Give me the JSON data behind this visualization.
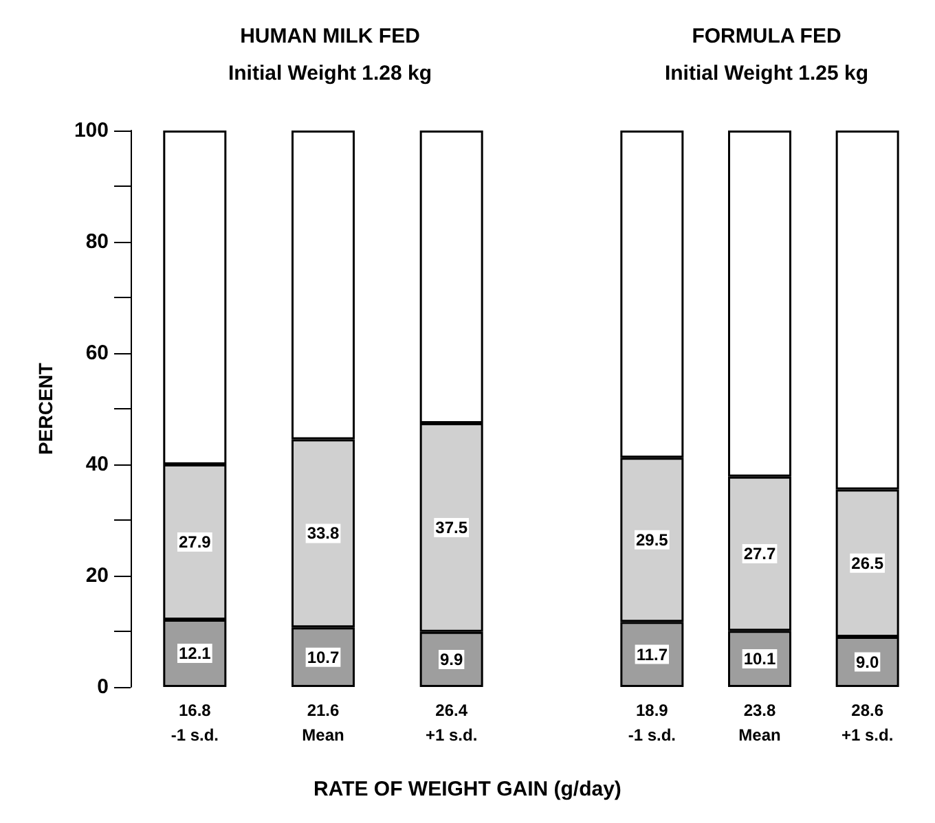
{
  "chart_data": [
    {
      "type": "bar",
      "title": "HUMAN MILK FED",
      "subtitle": "Initial Weight 1.28 kg",
      "xlabel": "RATE OF WEIGHT GAIN  (g/day)",
      "ylabel": "PERCENT",
      "stacked": true,
      "categories": [
        "16.8\n-1 s.d.",
        "21.6\nMean",
        "26.4\n+1 s.d."
      ],
      "series": [
        {
          "color": "#9e9e9e",
          "values": [
            12.1,
            10.7,
            9.9
          ],
          "value_labels": [
            "12.1",
            "10.7",
            "9.9"
          ]
        },
        {
          "color": "#d0d0d0",
          "values": [
            27.9,
            33.8,
            37.5
          ],
          "value_labels": [
            "27.9",
            "33.8",
            "37.5"
          ]
        },
        {
          "color": "#ffffff",
          "values": [
            60.0,
            55.5,
            52.6
          ]
        }
      ],
      "ylim": [
        0,
        100
      ],
      "yticks": [
        0,
        {
          "value": 10,
          "label": null
        },
        20,
        {
          "value": 30,
          "label": null
        },
        40,
        {
          "value": 50,
          "label": null
        },
        60,
        {
          "value": 70,
          "label": null
        },
        80,
        {
          "value": 90,
          "label": null
        },
        100
      ],
      "grid": false
    },
    {
      "type": "bar",
      "title": "FORMULA FED",
      "subtitle": "Initial Weight 1.25 kg",
      "stacked": true,
      "tick_labels": "x",
      "categories": [
        "18.9\n-1 s.d.",
        "23.8\nMean",
        "28.6\n+1 s.d."
      ],
      "series": [
        {
          "color": "#9e9e9e",
          "values": [
            11.7,
            10.1,
            9.0
          ],
          "value_labels": [
            "11.7",
            "10.1",
            "9.0"
          ]
        },
        {
          "color": "#d0d0d0",
          "values": [
            29.5,
            27.7,
            26.5
          ],
          "value_labels": [
            "29.5",
            "27.7",
            "26.5"
          ]
        },
        {
          "color": "#ffffff",
          "values": [
            58.8,
            62.2,
            64.5
          ]
        }
      ],
      "ylim": [
        0,
        100
      ],
      "grid": false
    }
  ]
}
